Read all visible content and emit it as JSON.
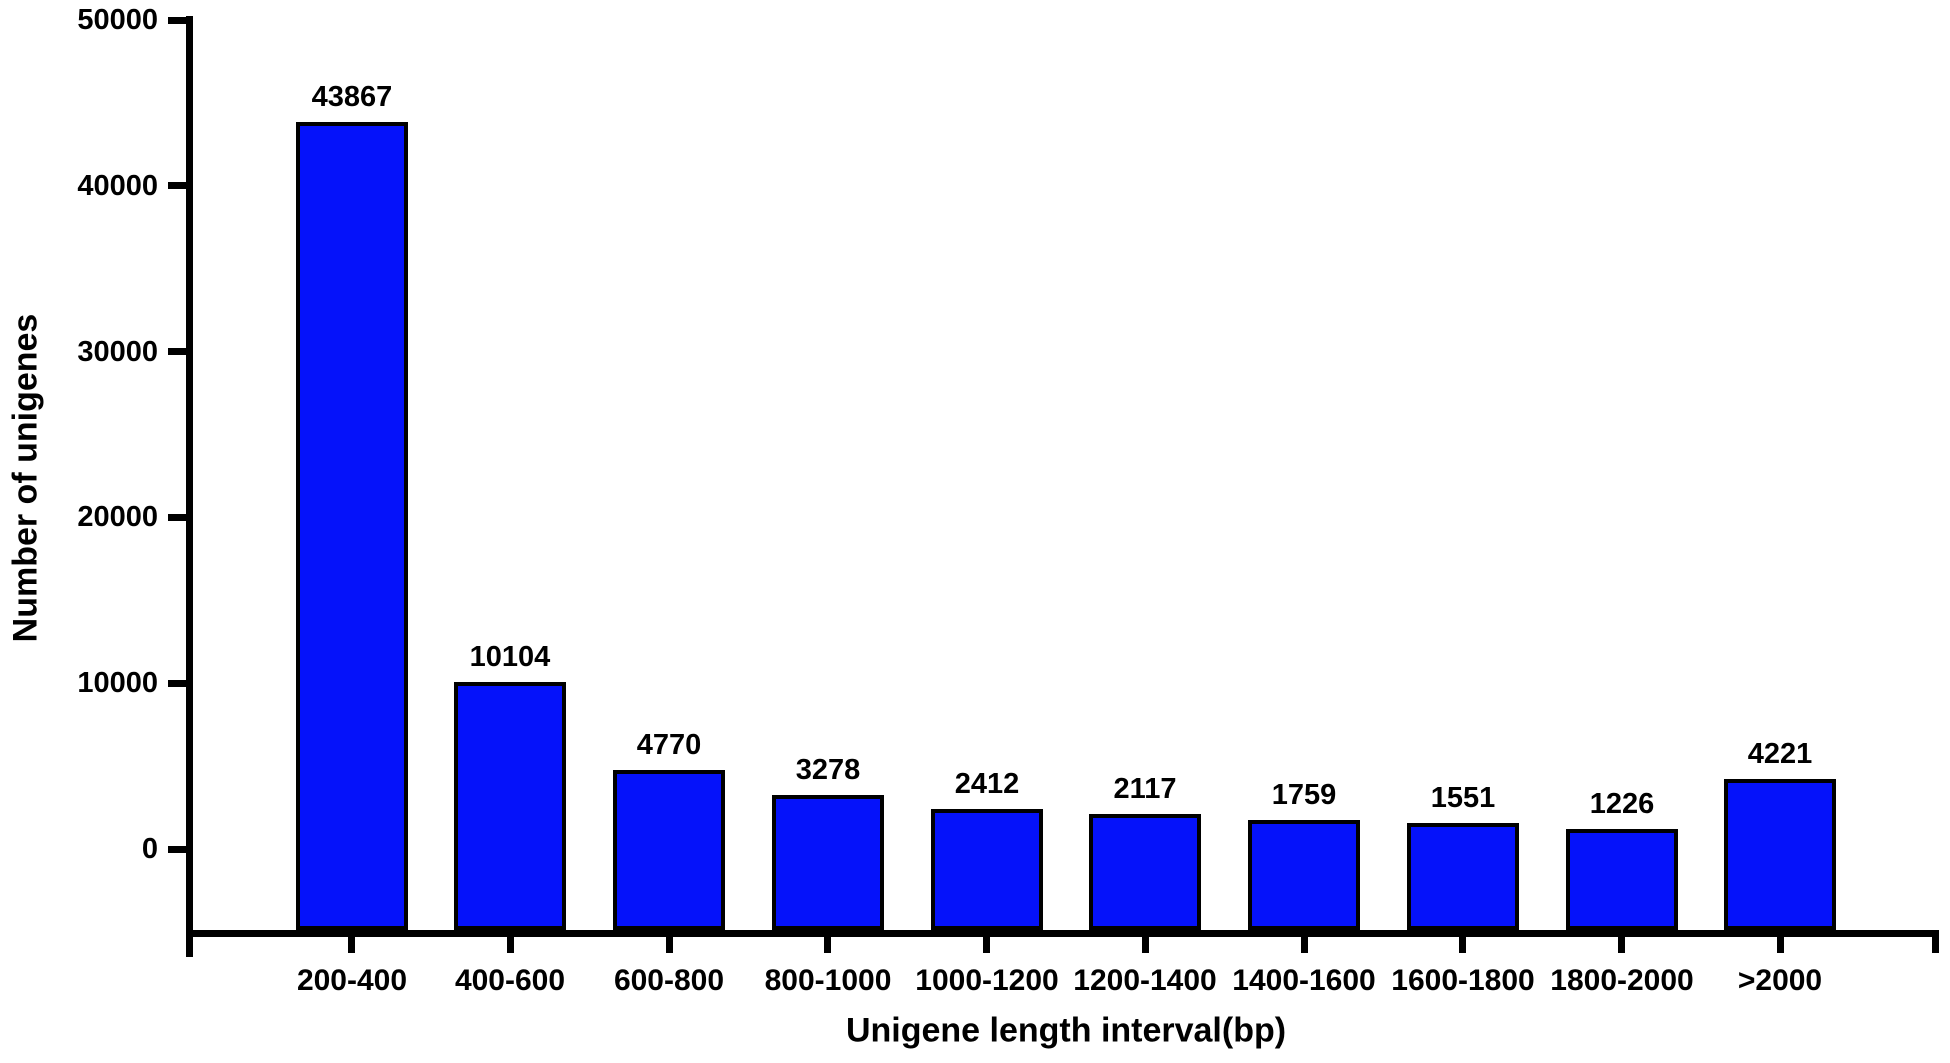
{
  "chart_data": {
    "type": "bar",
    "title": "",
    "xlabel": "Unigene length interval(bp)",
    "ylabel": "Number of unigenes",
    "categories": [
      "200-400",
      "400-600",
      "600-800",
      "800-1000",
      "1000-1200",
      "1200-1400",
      "1400-1600",
      "1600-1800",
      "1800-2000",
      ">2000"
    ],
    "values": [
      43867,
      10104,
      4770,
      3278,
      2412,
      2117,
      1759,
      1551,
      1226,
      4221
    ],
    "yticks": [
      0,
      10000,
      20000,
      30000,
      40000,
      50000
    ],
    "ylim": [
      -5300,
      50000
    ],
    "bar_value_labels": true,
    "grid": false,
    "legend": "none",
    "bar_color": "#0512fa",
    "bar_border_color": "#000000",
    "axis_color": "#000000",
    "text_color": "#000000",
    "background": "#ffffff"
  }
}
